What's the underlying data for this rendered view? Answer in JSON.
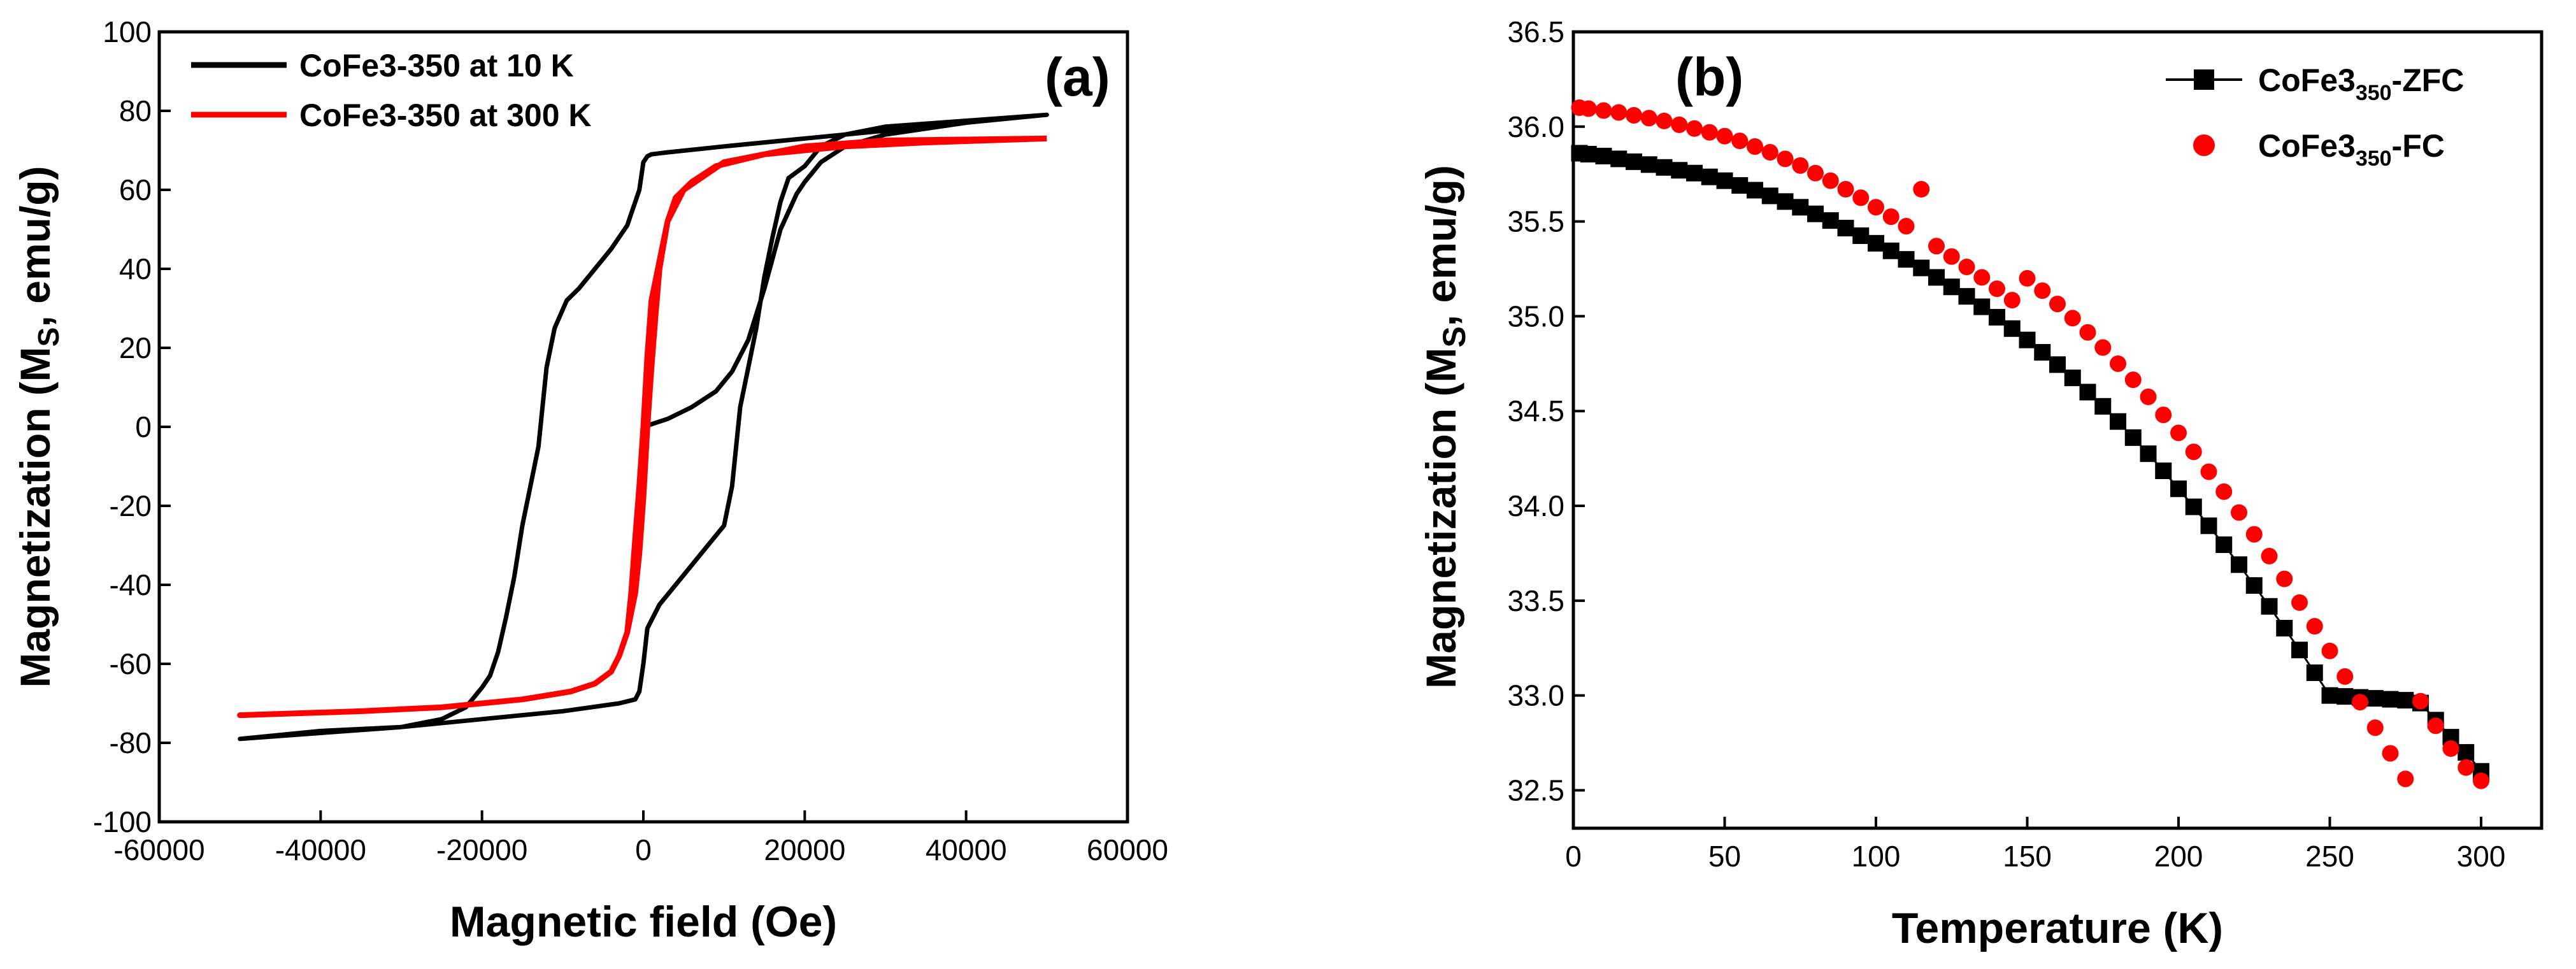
{
  "chart_data": [
    {
      "type": "line",
      "panel_label": "(a)",
      "xlabel": "Magnetic field (Oe)",
      "ylabel": "Magnetization (M",
      "ylabel_sub": "S",
      "ylabel_tail": ", emu/g)",
      "xlim": [
        -60000,
        60000
      ],
      "ylim": [
        -100,
        100
      ],
      "xticks": [
        -60000,
        -40000,
        -20000,
        0,
        20000,
        40000,
        60000
      ],
      "xtick_labels": [
        "-60000",
        "-40000",
        "-20000",
        "0",
        "20000",
        "40000",
        "60000"
      ],
      "yticks": [
        -100,
        -80,
        -60,
        -40,
        -20,
        0,
        20,
        40,
        60,
        80,
        100
      ],
      "ytick_labels": [
        "-100",
        "-80",
        "-60",
        "-40",
        "-20",
        "0",
        "20",
        "40",
        "60",
        "80",
        "100"
      ],
      "legend_position": "top-left",
      "series": [
        {
          "name": "CoFe3-350 at 10 K",
          "color": "#000000",
          "x": [
            0,
            3000,
            6000,
            9000,
            11000,
            13000,
            15000,
            17000,
            19000,
            20000,
            22000,
            25000,
            30000,
            40000,
            50000,
            40000,
            30000,
            20000,
            10000,
            3000,
            1000,
            500,
            0,
            -500,
            -2000,
            -4000,
            -6000,
            -8000,
            -9500,
            -11000,
            -12000,
            -13000,
            -14000,
            -15000,
            -16000,
            -17000,
            -18000,
            -19000,
            -20000,
            -22000,
            -25000,
            -30000,
            -40000,
            -50000,
            -40000,
            -30000,
            -20000,
            -10000,
            -3000,
            -1000,
            -500,
            0,
            500,
            2000,
            4000,
            6000,
            8000,
            10000,
            11000,
            12000,
            13000,
            14000,
            15000,
            16000,
            17000,
            18000,
            20000,
            22000,
            25000,
            30000,
            40000,
            50000
          ],
          "y": [
            0,
            2,
            5,
            9,
            14,
            22,
            35,
            50,
            59,
            62,
            67,
            71,
            74,
            77,
            79,
            77,
            75,
            73,
            71,
            69.5,
            69,
            68.5,
            67,
            60,
            51,
            45,
            40,
            35,
            32,
            25,
            15,
            -5,
            -15,
            -25,
            -38,
            -48,
            -57,
            -63,
            -66,
            -71,
            -74,
            -76,
            -77.5,
            -79,
            -77,
            -76,
            -74,
            -72,
            -70,
            -69,
            -67,
            -60,
            -51,
            -45,
            -40,
            -35,
            -30,
            -25,
            -15,
            5,
            15,
            25,
            38,
            48,
            57,
            63,
            66,
            71,
            74,
            76,
            77.5,
            79
          ]
        },
        {
          "name": "CoFe3-350 at 300 K",
          "color": "#ff0000",
          "x": [
            50000,
            30000,
            20000,
            10000,
            5000,
            3000,
            2000,
            1500,
            1000,
            500,
            0,
            -500,
            -1000,
            -2000,
            -3000,
            -4000,
            -6000,
            -9000,
            -15000,
            -25000,
            -35000,
            -50000,
            -35000,
            -25000,
            -15000,
            -9000,
            -6000,
            -4000,
            -3000,
            -2000,
            -1500,
            -1000,
            -500,
            0,
            500,
            1000,
            2000,
            3000,
            4000,
            6000,
            9000,
            15000,
            25000,
            35000,
            50000
          ],
          "y": [
            73,
            72.5,
            71,
            67,
            60,
            52,
            40,
            28,
            15,
            0,
            -18,
            -32,
            -42,
            -52,
            -58,
            -62,
            -65,
            -67,
            -69,
            -71,
            -72,
            -73,
            -72,
            -71,
            -69,
            -67,
            -65,
            -62,
            -58,
            -52,
            -42,
            -28,
            -15,
            0,
            18,
            32,
            42,
            52,
            58,
            62,
            66,
            69,
            71,
            72,
            73
          ]
        }
      ]
    },
    {
      "type": "scatter",
      "panel_label": "(b)",
      "xlabel": "Temperature (K)",
      "ylabel": "Magnetization (M",
      "ylabel_sub": "S",
      "ylabel_tail": ", emu/g)",
      "xlim": [
        0,
        320
      ],
      "ylim": [
        32.3,
        36.5
      ],
      "xticks": [
        0,
        50,
        100,
        150,
        200,
        250,
        300
      ],
      "xtick_labels": [
        "0",
        "50",
        "100",
        "150",
        "200",
        "250",
        "300"
      ],
      "yticks": [
        32.5,
        33.0,
        33.5,
        34.0,
        34.5,
        35.0,
        35.5,
        36.0,
        36.5
      ],
      "ytick_labels": [
        "32.5",
        "33.0",
        "33.5",
        "34.0",
        "34.5",
        "35.0",
        "35.5",
        "36.0",
        "36.5"
      ],
      "legend_position": "top-right",
      "series": [
        {
          "name": "CoFe3",
          "name_sub": "350",
          "name_tail": "-ZFC",
          "color": "#000000",
          "marker": "square",
          "x": [
            2,
            5,
            10,
            15,
            20,
            25,
            30,
            35,
            40,
            45,
            50,
            55,
            60,
            65,
            70,
            75,
            80,
            85,
            90,
            95,
            100,
            105,
            110,
            115,
            120,
            125,
            130,
            135,
            140,
            145,
            150,
            155,
            160,
            165,
            170,
            175,
            180,
            185,
            190,
            195,
            200,
            205,
            210,
            215,
            220,
            225,
            230,
            235,
            240,
            245,
            250,
            255,
            260,
            265,
            270,
            275,
            280,
            285,
            290,
            295,
            300
          ],
          "y": [
            35.86,
            35.855,
            35.845,
            35.83,
            35.815,
            35.8,
            35.785,
            35.77,
            35.755,
            35.735,
            35.715,
            35.69,
            35.665,
            35.635,
            35.605,
            35.575,
            35.54,
            35.505,
            35.465,
            35.425,
            35.385,
            35.345,
            35.3,
            35.255,
            35.205,
            35.155,
            35.105,
            35.05,
            34.995,
            34.935,
            34.875,
            34.81,
            34.745,
            34.675,
            34.6,
            34.525,
            34.445,
            34.36,
            34.275,
            34.185,
            34.09,
            33.995,
            33.895,
            33.795,
            33.69,
            33.58,
            33.47,
            33.355,
            33.24,
            33.12,
            33.0,
            32.995,
            32.99,
            32.985,
            32.98,
            32.975,
            32.96,
            32.87,
            32.78,
            32.7,
            32.6
          ]
        },
        {
          "name": "CoFe3",
          "name_sub": "350",
          "name_tail": "-FC",
          "color": "#ff0000",
          "marker": "circle",
          "x": [
            2,
            5,
            10,
            15,
            20,
            25,
            30,
            35,
            40,
            45,
            50,
            55,
            60,
            65,
            70,
            75,
            80,
            85,
            90,
            95,
            100,
            105,
            110,
            115,
            120,
            125,
            130,
            135,
            140,
            145,
            150,
            155,
            160,
            165,
            170,
            175,
            180,
            185,
            190,
            195,
            200,
            205,
            210,
            215,
            220,
            225,
            230,
            235,
            240,
            245,
            250,
            255,
            260,
            265,
            270,
            275,
            280,
            285,
            290,
            295,
            300
          ],
          "y": [
            36.1,
            36.095,
            36.085,
            36.075,
            36.06,
            36.045,
            36.03,
            36.01,
            35.99,
            35.97,
            35.95,
            35.925,
            35.895,
            35.865,
            35.83,
            35.795,
            35.755,
            35.715,
            35.67,
            35.625,
            35.575,
            35.525,
            35.475,
            35.67,
            35.37,
            35.315,
            35.26,
            35.205,
            35.145,
            35.085,
            35.2,
            35.135,
            35.065,
            34.99,
            34.915,
            34.835,
            34.75,
            34.665,
            34.575,
            34.48,
            34.385,
            34.285,
            34.18,
            34.075,
            33.965,
            33.85,
            33.735,
            33.615,
            33.49,
            33.365,
            33.235,
            33.1,
            32.965,
            32.83,
            32.695,
            32.56,
            32.97,
            32.84,
            32.72,
            32.62,
            32.55
          ]
        }
      ]
    }
  ]
}
